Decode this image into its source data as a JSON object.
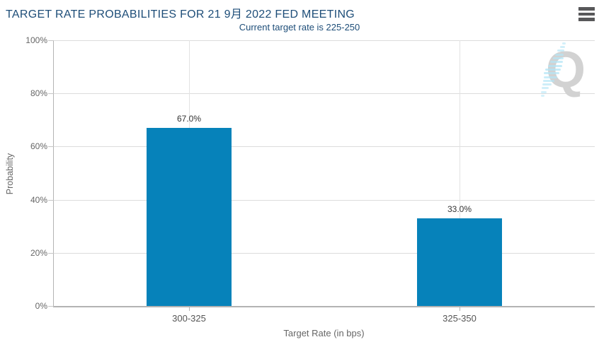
{
  "header": {
    "title": "TARGET RATE PROBABILITIES FOR 21 9月 2022 FED MEETING",
    "subtitle": "Current target rate is 225-250"
  },
  "menu": {
    "icon": "hamburger-icon"
  },
  "chart_data": {
    "type": "bar",
    "title": "TARGET RATE PROBABILITIES FOR 21 9月 2022 FED MEETING",
    "subtitle": "Current target rate is 225-250",
    "categories": [
      "300-325",
      "325-350"
    ],
    "values": [
      67.0,
      33.0
    ],
    "value_labels": [
      "67.0%",
      "33.0%"
    ],
    "xlabel": "Target Rate (in bps)",
    "ylabel": "Probability",
    "ylim": [
      0,
      100
    ],
    "yticks": [
      0,
      20,
      40,
      60,
      80,
      100
    ],
    "ytick_labels": [
      "0%",
      "20%",
      "40%",
      "60%",
      "80%",
      "100%"
    ],
    "grid": true,
    "legend": false,
    "bar_color": "#0682ba"
  },
  "watermark": {
    "letter": "Q",
    "letter_color": "#d2d2d2",
    "dash_color": "#b3e5f6"
  },
  "colors": {
    "title": "#1d4d78",
    "tick_label": "#666666",
    "category_label": "#555555",
    "data_label": "#333333",
    "gridline": "#dcdcdc",
    "axis_line": "#b3b3b3",
    "menu_icon": "#58585a"
  }
}
